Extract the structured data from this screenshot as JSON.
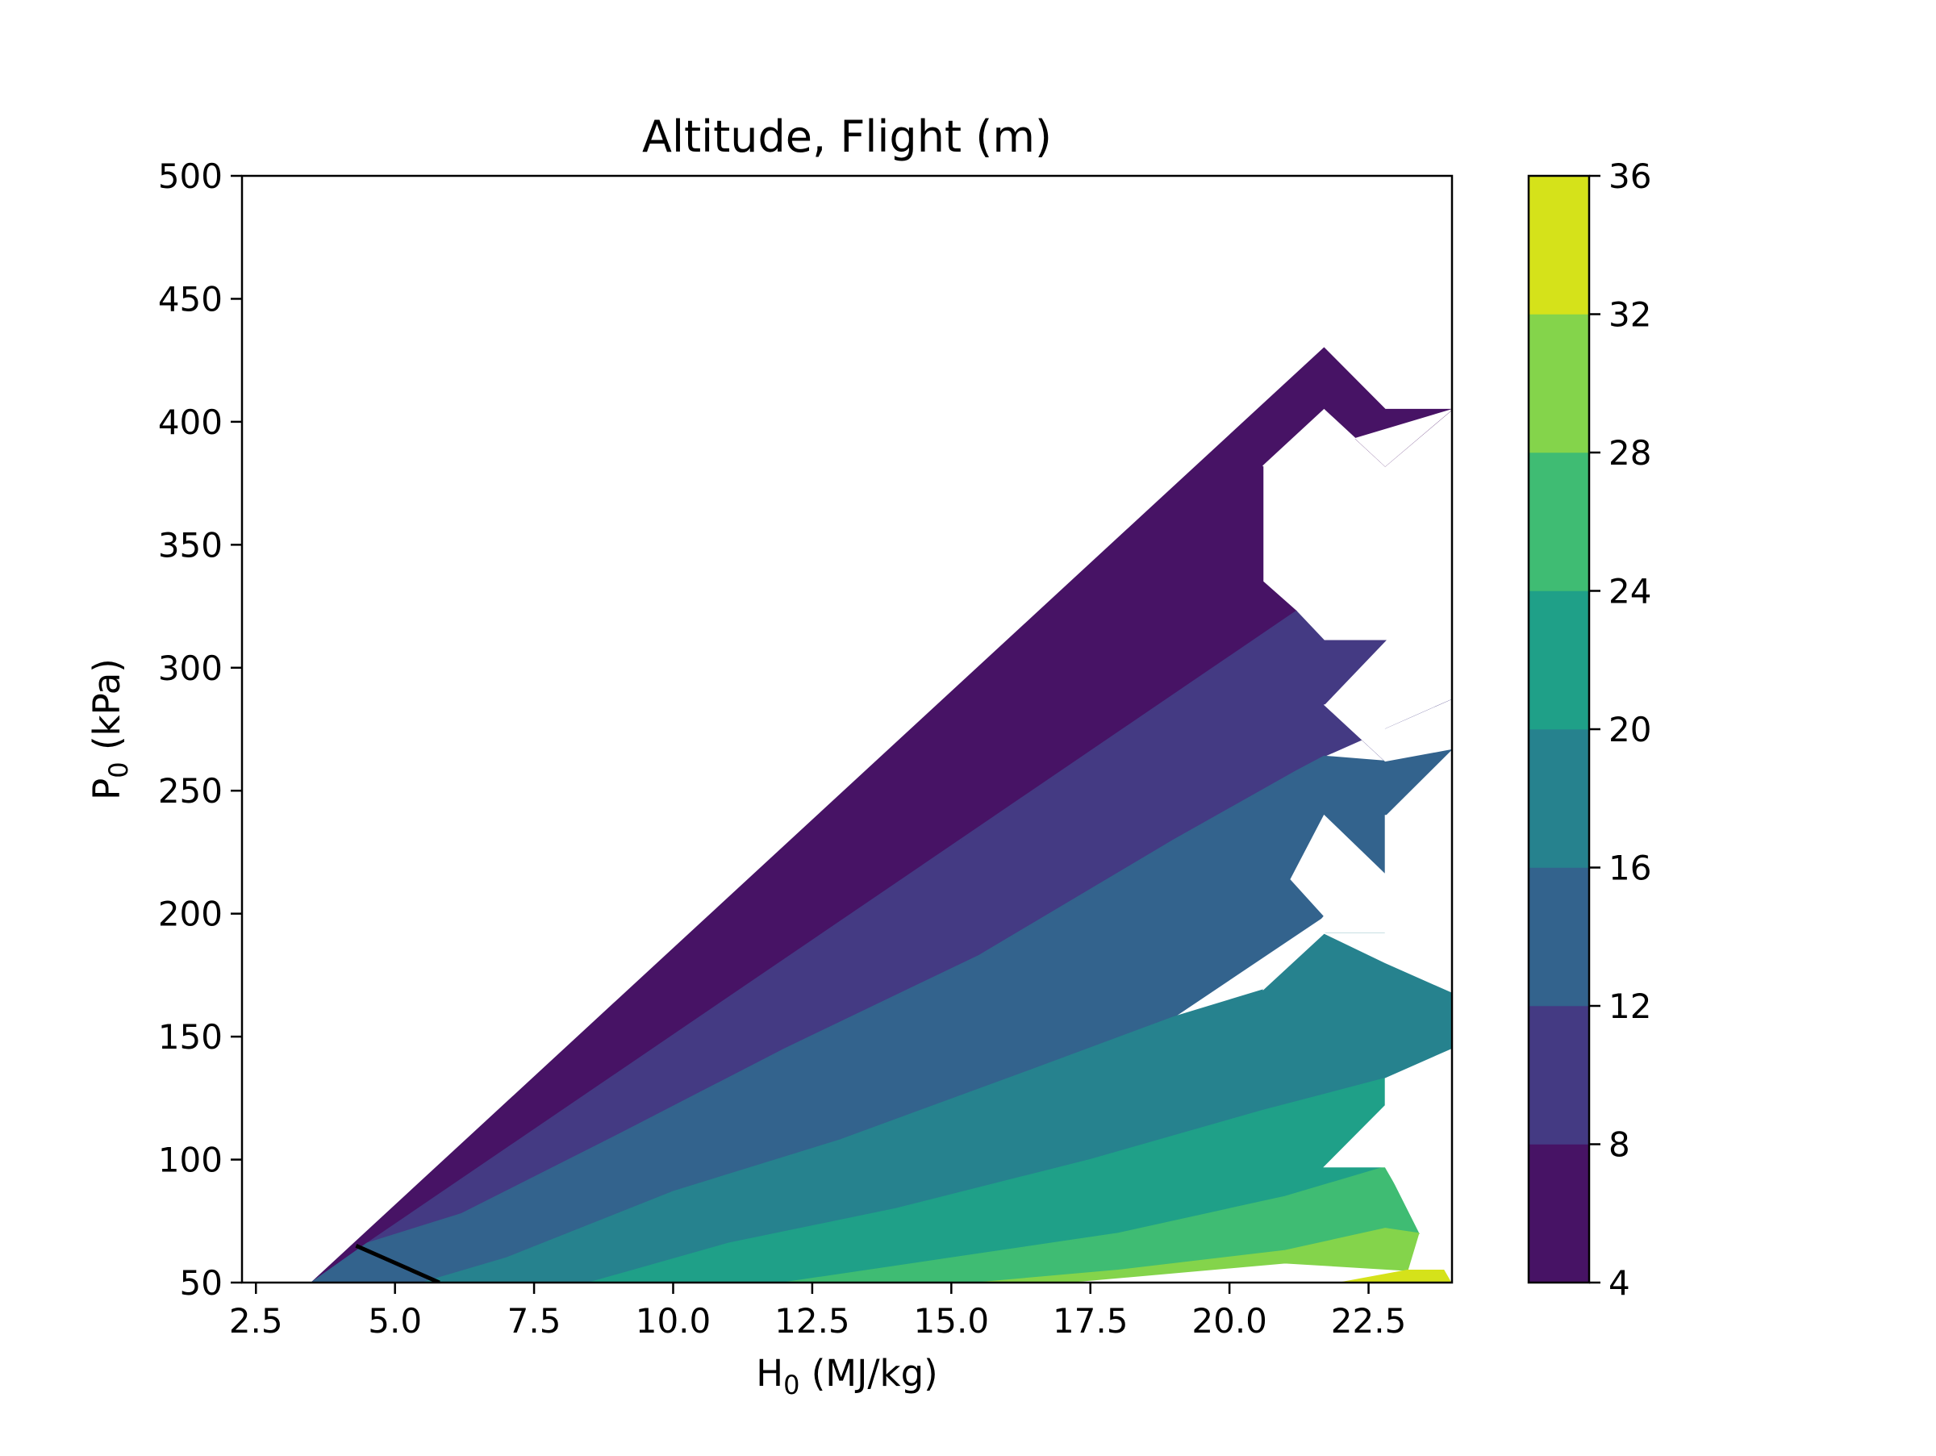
{
  "chart_data": {
    "type": "contourf",
    "title": "Altitude, Flight (m)",
    "xlabel": "H",
    "xlabel_sub": "0",
    "xlabel_unit": " (MJ/kg)",
    "ylabel": "P",
    "ylabel_sub": "0",
    "ylabel_unit": " (kPa)",
    "xlim": [
      2.25,
      24.0
    ],
    "ylim": [
      50,
      500
    ],
    "xticks": [
      "2.5",
      "5.0",
      "7.5",
      "10.0",
      "12.5",
      "15.0",
      "17.5",
      "20.0",
      "22.5"
    ],
    "xtick_values": [
      2.5,
      5.0,
      7.5,
      10.0,
      12.5,
      15.0,
      17.5,
      20.0,
      22.5
    ],
    "yticks": [
      "50",
      "100",
      "150",
      "200",
      "250",
      "300",
      "350",
      "400",
      "450",
      "500"
    ],
    "ytick_values": [
      50,
      100,
      150,
      200,
      250,
      300,
      350,
      400,
      450,
      500
    ],
    "colorbar": {
      "levels": [
        4,
        8,
        12,
        16,
        20,
        24,
        28,
        32,
        36
      ],
      "tick_labels": [
        "4",
        "8",
        "12",
        "16",
        "20",
        "24",
        "28",
        "32",
        "36"
      ],
      "colors": [
        "#471365",
        "#443a83",
        "#33638d",
        "#26828e",
        "#1fa088",
        "#3fbc73",
        "#84d44b",
        "#d5e21a"
      ]
    },
    "bands": [
      {
        "range": [
          4,
          8
        ],
        "color": "#471365",
        "region": [
          [
            3.5,
            50
          ],
          [
            21.7,
            430
          ],
          [
            22.8,
            405
          ],
          [
            24.0,
            405
          ],
          [
            22.8,
            382
          ],
          [
            21.7,
            405
          ],
          [
            20.6,
            382
          ],
          [
            20.6,
            335
          ],
          [
            21.2,
            323
          ],
          [
            4.5,
            66
          ]
        ]
      },
      {
        "range": [
          8,
          12
        ],
        "color": "#443a83",
        "region": [
          [
            3.5,
            50
          ],
          [
            4.5,
            66
          ],
          [
            6.2,
            78
          ],
          [
            9.0,
            110
          ],
          [
            12.0,
            145
          ],
          [
            15.5,
            183
          ],
          [
            19.0,
            230
          ],
          [
            21.2,
            258
          ],
          [
            21.7,
            264
          ],
          [
            22.8,
            275
          ],
          [
            24.0,
            287
          ],
          [
            24.0,
            267
          ],
          [
            22.8,
            262
          ],
          [
            21.7,
            285
          ],
          [
            22.8,
            311
          ],
          [
            21.7,
            311
          ],
          [
            21.2,
            323
          ],
          [
            4.5,
            66
          ]
        ]
      },
      {
        "range": [
          12,
          16
        ],
        "color": "#33638d",
        "region": [
          [
            5.5,
            50
          ],
          [
            7.0,
            60
          ],
          [
            10.0,
            87
          ],
          [
            13.0,
            108
          ],
          [
            16.5,
            137
          ],
          [
            19.0,
            158
          ],
          [
            21.7,
            199
          ],
          [
            21.1,
            214
          ],
          [
            21.7,
            240
          ],
          [
            22.8,
            216
          ],
          [
            22.8,
            240
          ],
          [
            24.0,
            267
          ],
          [
            22.8,
            262
          ],
          [
            21.7,
            264
          ],
          [
            21.2,
            258
          ],
          [
            19.0,
            230
          ],
          [
            15.5,
            183
          ],
          [
            12.0,
            145
          ],
          [
            9.0,
            110
          ],
          [
            6.2,
            78
          ],
          [
            4.5,
            66
          ],
          [
            3.5,
            50
          ]
        ]
      },
      {
        "range": [
          16,
          20
        ],
        "color": "#26828e",
        "region": [
          [
            8.5,
            50
          ],
          [
            11.0,
            66
          ],
          [
            14.0,
            80
          ],
          [
            17.5,
            100
          ],
          [
            20.6,
            120
          ],
          [
            22.8,
            133
          ],
          [
            24.0,
            145
          ],
          [
            24.0,
            168
          ],
          [
            22.8,
            180
          ],
          [
            22.8,
            192
          ],
          [
            21.7,
            192
          ],
          [
            20.6,
            169
          ],
          [
            19.0,
            158
          ],
          [
            16.5,
            137
          ],
          [
            13.0,
            108
          ],
          [
            10.0,
            87
          ],
          [
            7.0,
            60
          ],
          [
            5.5,
            50
          ]
        ]
      },
      {
        "range": [
          20,
          24
        ],
        "color": "#1fa088",
        "region": [
          [
            12.0,
            50
          ],
          [
            15.0,
            60
          ],
          [
            18.0,
            70
          ],
          [
            21.0,
            85
          ],
          [
            22.8,
            97
          ],
          [
            21.7,
            97
          ],
          [
            22.8,
            122
          ],
          [
            22.8,
            133
          ],
          [
            20.6,
            120
          ],
          [
            17.5,
            100
          ],
          [
            14.0,
            80
          ],
          [
            11.0,
            66
          ],
          [
            8.5,
            50
          ]
        ]
      },
      {
        "range": [
          24,
          28
        ],
        "color": "#3fbc73",
        "region": [
          [
            15.5,
            50
          ],
          [
            18.0,
            55
          ],
          [
            21.0,
            63
          ],
          [
            22.8,
            72
          ],
          [
            23.4,
            70
          ],
          [
            22.8,
            97
          ],
          [
            21.0,
            85
          ],
          [
            18.0,
            70
          ],
          [
            15.0,
            60
          ],
          [
            12.0,
            50
          ]
        ]
      },
      {
        "range": [
          28,
          32
        ],
        "color": "#84d44b",
        "region": [
          [
            17.0,
            50
          ],
          [
            21.0,
            58
          ],
          [
            23.2,
            55
          ],
          [
            23.4,
            70
          ],
          [
            22.8,
            72
          ],
          [
            21.0,
            63
          ],
          [
            18.0,
            55
          ],
          [
            15.5,
            50
          ]
        ]
      },
      {
        "range": [
          32,
          36
        ],
        "color": "#d5e21a",
        "region": [
          [
            22.0,
            50
          ],
          [
            24.0,
            50
          ],
          [
            24.0,
            55
          ],
          [
            23.2,
            55
          ]
        ]
      }
    ],
    "white_cutouts": [
      [
        [
          20.6,
          382
        ],
        [
          21.7,
          405
        ],
        [
          22.8,
          382
        ],
        [
          24.0,
          405
        ],
        [
          24.0,
          287
        ],
        [
          22.8,
          275
        ],
        [
          21.7,
          285
        ],
        [
          22.8,
          262
        ],
        [
          24.0,
          267
        ],
        [
          24.0,
          240
        ],
        [
          22.8,
          240
        ],
        [
          22.8,
          192
        ],
        [
          21.7,
          192
        ],
        [
          22.8,
          216
        ],
        [
          21.7,
          240
        ],
        [
          21.1,
          214
        ],
        [
          21.7,
          199
        ],
        [
          20.6,
          169
        ],
        [
          21.7,
          192
        ],
        [
          22.8,
          180
        ],
        [
          24.0,
          168
        ],
        [
          24.0,
          145
        ],
        [
          22.8,
          133
        ],
        [
          22.8,
          122
        ],
        [
          21.7,
          97
        ],
        [
          22.8,
          97
        ],
        [
          24.0,
          50
        ],
        [
          24.0,
          405
        ]
      ]
    ],
    "contour_line": {
      "color": "#000000",
      "points": [
        [
          4.3,
          65
        ],
        [
          4.8,
          60
        ],
        [
          5.8,
          50
        ]
      ]
    }
  }
}
